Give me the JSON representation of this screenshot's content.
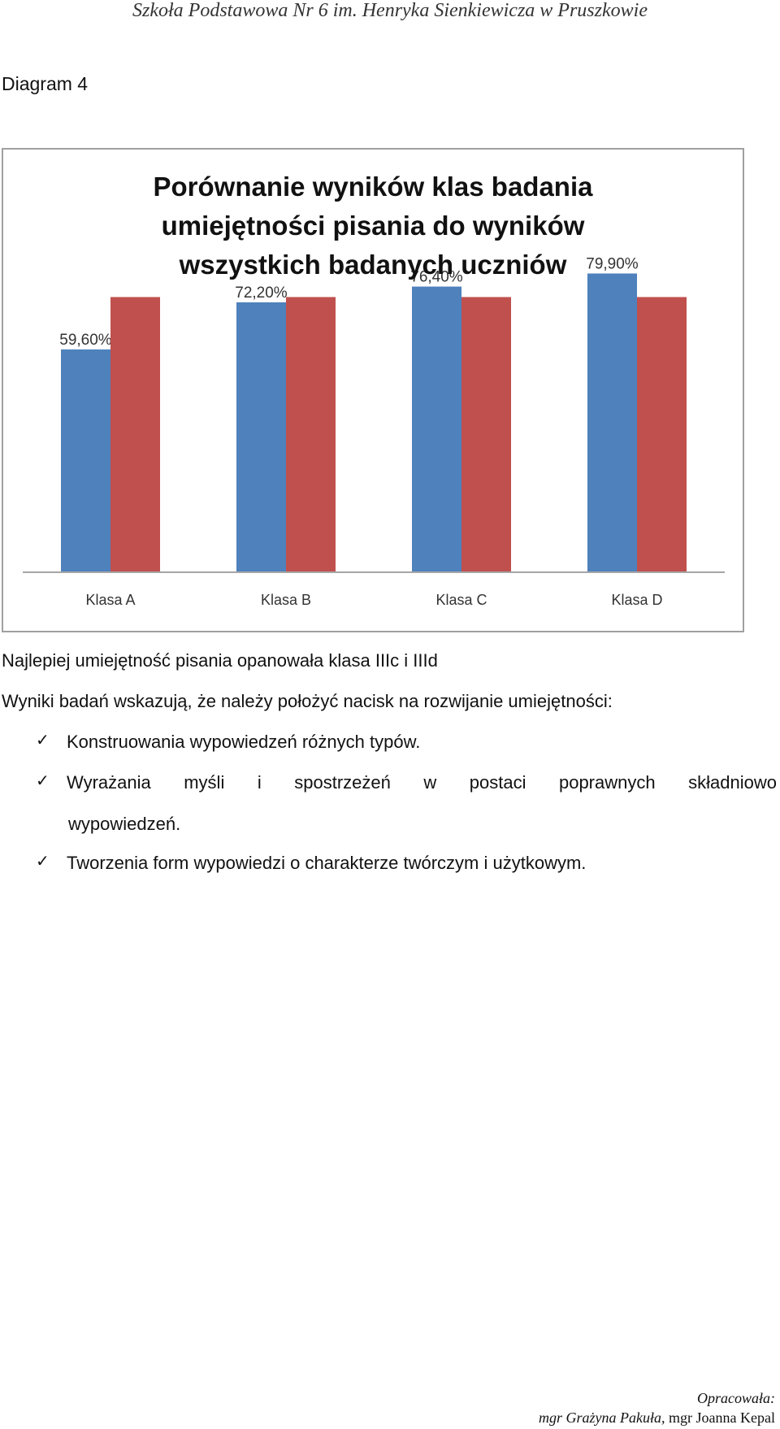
{
  "header": "Szkoła Podstawowa Nr 6 im. Henryka Sienkiewicza w Pruszkowie",
  "diagram_label": "Diagram 4",
  "chart_data": {
    "type": "bar",
    "title_lines": [
      "Porównanie wyników klas badania",
      "umiejętności pisania do wyników",
      "wszystkich badanych uczniów"
    ],
    "categories": [
      "Klasa A",
      "Klasa B",
      "Klasa C",
      "Klasa D"
    ],
    "series": [
      {
        "values": [
          59.6,
          72.2,
          76.4,
          79.9
        ],
        "labels": [
          "59,60%",
          "72,20%",
          "76,40%",
          "79,90%"
        ],
        "color": "#4f81bd"
      },
      {
        "values": [
          73.6,
          73.6,
          73.6,
          73.6
        ],
        "color": "#c0504d"
      }
    ],
    "ylim": [
      0,
      100
    ],
    "grid": false,
    "legend": "none"
  },
  "text": {
    "line1": "Najlepiej umiejętność pisania opanowała klasa IIIc i IIId",
    "line2": "Wyniki badań wskazują, że należy położyć nacisk na rozwijanie umiejętności:",
    "bullet1": "Konstruowania wypowiedzeń różnych typów.",
    "bullet2_words": [
      "Wyrażania",
      "myśli",
      "i",
      "spostrzeżeń",
      "w",
      "postaci",
      "poprawnych",
      "składniowo"
    ],
    "bullet2_cont": "wypowiedzeń.",
    "bullet3": "Tworzenia form wypowiedzi o charakterze twórczym i użytkowym.",
    "check_symbol": "✓"
  },
  "footer": {
    "label": "Opracowała:",
    "author1": "mgr Grażyna Pakuła,",
    "author2": "mgr Joanna Kepal"
  }
}
